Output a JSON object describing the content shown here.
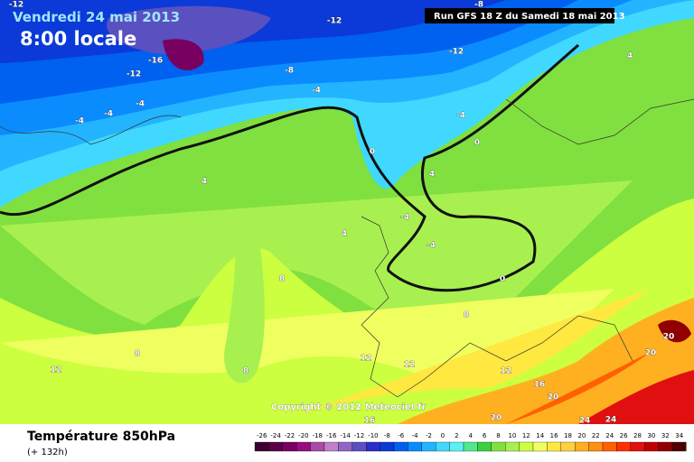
{
  "header": {
    "date": "Vendredi 24 mai 2013",
    "time": "8:00 locale",
    "run": "Run GFS 18 Z du Samedi 18 mai 2013"
  },
  "copyright": "Copyright © 2012 Meteociel.fr",
  "footer": {
    "title": "Température 850hPa",
    "lead": "(+ 132h)"
  },
  "scale": {
    "values": [
      -26,
      -24,
      -22,
      -20,
      -18,
      -16,
      -14,
      -12,
      -10,
      -8,
      -6,
      -4,
      -2,
      0,
      2,
      4,
      6,
      8,
      10,
      12,
      14,
      16,
      18,
      20,
      22,
      24,
      26,
      28,
      30,
      32,
      34
    ],
    "colors": [
      "#3c0030",
      "#5a0048",
      "#780060",
      "#960f80",
      "#a94aa6",
      "#c080c8",
      "#8e66c4",
      "#5a50c0",
      "#2a30c8",
      "#0b3ad8",
      "#0060f0",
      "#0a8cff",
      "#23b4ff",
      "#40d8ff",
      "#5cf0f0",
      "#50e890",
      "#3cd040",
      "#80e040",
      "#a8f050",
      "#ccff40",
      "#f0ff60",
      "#ffe840",
      "#ffd040",
      "#ffb020",
      "#ff9010",
      "#ff6000",
      "#ff3000",
      "#e01010",
      "#c00000",
      "#900000",
      "#500000"
    ]
  },
  "contour_labels": [
    -12,
    -12,
    -16,
    -12,
    -8,
    -12,
    -8,
    -4,
    -4,
    -4,
    -4,
    -4,
    4,
    0,
    0,
    4,
    4,
    -4,
    -4,
    4,
    8,
    0,
    8,
    8,
    12,
    12,
    12,
    12,
    8,
    16,
    20,
    20,
    20,
    16,
    20,
    24,
    24
  ]
}
